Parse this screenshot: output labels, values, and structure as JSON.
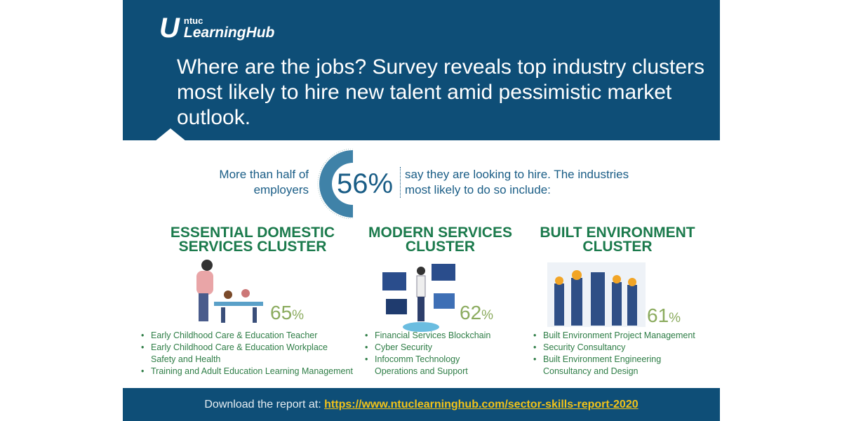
{
  "brand": {
    "logo_mark": "U",
    "ntuc": "ntuc",
    "name": "LearningHub"
  },
  "title": "Where are the jobs? Survey reveals top industry clusters most likely to hire new talent amid pessimistic market outlook.",
  "stat": {
    "left": "More than half of employers",
    "value": "56%",
    "right": "say they are looking to hire. The industries most likely to do so include:"
  },
  "clusters": [
    {
      "title": "ESSENTIAL DOMESTIC SERVICES CLUSTER",
      "pct": "65",
      "items": [
        "Early Childhood Care & Education Teacher",
        "Early Childhood Care & Education Workplace Safety and Health",
        "Training and Adult Education Learning Management"
      ]
    },
    {
      "title": "MODERN SERVICES CLUSTER",
      "pct": "62",
      "items": [
        "Financial Services Blockchain",
        "Cyber Security",
        "Infocomm Technology Operations and Support"
      ]
    },
    {
      "title": "BUILT ENVIRONMENT CLUSTER",
      "pct": "61",
      "items": [
        "Built Environment Project Management",
        "Security Consultancy",
        "Built Environment Engineering Consultancy and Design"
      ]
    }
  ],
  "pct_sign": "%",
  "footer": {
    "label": "Download the report at:",
    "link": "https://www.ntuclearninghub.com/sector-skills-report-2020"
  }
}
